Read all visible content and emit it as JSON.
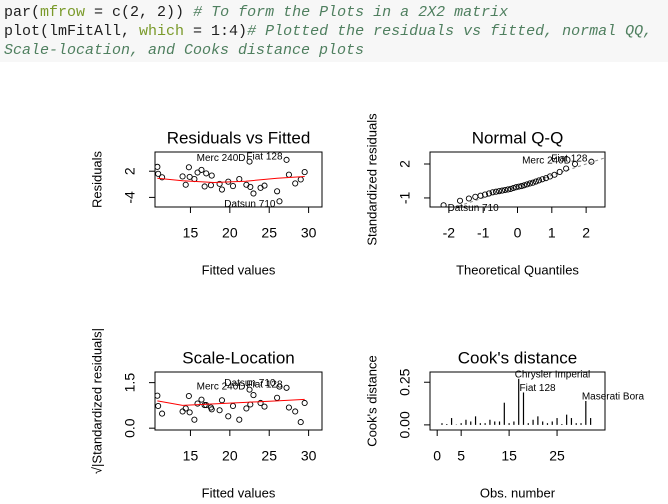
{
  "code": {
    "lines": [
      [
        {
          "text": "par(",
          "color": "#1f1f1f",
          "italic": false
        },
        {
          "text": "mfrow",
          "color": "#7a9a2a",
          "italic": false
        },
        {
          "text": " = c(2, 2))",
          "color": "#1f1f1f",
          "italic": false
        },
        {
          "text": " # To form the Plots in a 2X2 matrix",
          "color": "#4f7f5f",
          "italic": true
        }
      ],
      [
        {
          "text": "plot(lmFitAll, ",
          "color": "#1f1f1f",
          "italic": false
        },
        {
          "text": "which",
          "color": "#7a9a2a",
          "italic": false
        },
        {
          "text": " = 1:4)",
          "color": "#1f1f1f",
          "italic": false
        },
        {
          "text": "# Plotted the residuals vs fitted, normal QQ,",
          "color": "#4f7f5f",
          "italic": true
        }
      ],
      [
        {
          "text": "Scale-location, and Cooks distance plots",
          "color": "#4f7f5f",
          "italic": true
        }
      ]
    ]
  },
  "chart_data": [
    {
      "type": "scatter",
      "title": "Residuals vs Fitted",
      "x_label": "Fitted values",
      "y_label": "Residuals",
      "x": [
        22.6,
        22.1,
        26.3,
        21.2,
        17.7,
        20.4,
        14.4,
        22.5,
        24.4,
        18.7,
        19.0,
        14.9,
        15.9,
        15.5,
        11.4,
        10.9,
        10.8,
        27.2,
        29.0,
        29.5,
        23.9,
        16.8,
        17.6,
        14.0,
        16.4,
        28.3,
        26.0,
        27.5,
        17.0,
        19.8,
        14.8,
        23.0
      ],
      "y": [
        -1.6,
        -1.1,
        -4.9,
        0.2,
        1.0,
        -1.4,
        -1.1,
        4.2,
        -1.3,
        -0.9,
        -2.2,
        0.7,
        1.7,
        0.2,
        0.6,
        1.4,
        3.0,
        4.6,
        0.1,
        1.8,
        -1.8,
        -1.5,
        -1.2,
        0.8,
        2.3,
        -0.8,
        -2.6,
        1.2,
        1.5,
        -0.4,
        2.9,
        -3.1
      ],
      "smooth": {
        "x": [
          10.8,
          14,
          18,
          22,
          26,
          29.5
        ],
        "y": [
          0.4,
          -0.2,
          -0.6,
          -0.3,
          0.4,
          0.8
        ],
        "color": "#ff0000"
      },
      "annotations": [
        {
          "text": "Fiat 128",
          "point": 17
        },
        {
          "text": "Merc 240D",
          "point": 7
        },
        {
          "text": "Datsun 710",
          "point": 2
        }
      ],
      "xlim": [
        10.5,
        31.7
      ],
      "ylim": [
        -6.2,
        6.4
      ],
      "xticks": [
        15,
        20,
        25,
        30
      ],
      "yticks": [
        -4,
        2
      ]
    },
    {
      "type": "qq",
      "title": "Normal Q-Q",
      "x_label": "Theoretical Quantiles",
      "y_label": "Standardized residuals",
      "x": [
        -2.154,
        -1.675,
        -1.417,
        -1.23,
        -1.078,
        -0.947,
        -0.83,
        -0.724,
        -0.626,
        -0.535,
        -0.447,
        -0.361,
        -0.278,
        -0.197,
        -0.118,
        -0.039,
        0.039,
        0.118,
        0.197,
        0.278,
        0.361,
        0.447,
        0.535,
        0.626,
        0.724,
        0.83,
        0.947,
        1.078,
        1.23,
        1.417,
        1.675,
        2.154
      ],
      "y": [
        -1.65,
        -1.25,
        -1.05,
        -0.9,
        -0.8,
        -0.7,
        -0.6,
        -0.5,
        -0.45,
        -0.4,
        -0.35,
        -0.3,
        -0.25,
        -0.2,
        -0.12,
        -0.05,
        0.0,
        0.05,
        0.12,
        0.2,
        0.28,
        0.35,
        0.45,
        0.55,
        0.65,
        0.75,
        0.9,
        1.05,
        1.3,
        1.6,
        2.0,
        2.2
      ],
      "annotations": [
        {
          "text": "Merc 240D",
          "point": 30
        },
        {
          "text": "Fiat 128",
          "point": 31
        },
        {
          "text": "Datsun 710",
          "point": 0
        }
      ],
      "xlim": [
        -2.55,
        2.55
      ],
      "ylim": [
        -1.8,
        3.06
      ],
      "xticks": [
        -2,
        -1,
        0,
        1,
        2
      ],
      "yticks": [
        -1,
        2
      ]
    },
    {
      "type": "scatter",
      "title": "Scale-Location",
      "x_label": "Fitted values",
      "y_label": "√|Standardized residuals|",
      "x": [
        22.6,
        22.1,
        26.3,
        21.2,
        17.7,
        20.4,
        14.4,
        22.5,
        24.4,
        18.7,
        19.0,
        14.9,
        15.9,
        15.5,
        11.4,
        10.9,
        10.8,
        27.2,
        29.0,
        29.5,
        23.9,
        16.8,
        17.6,
        14.0,
        16.4,
        28.3,
        26.0,
        27.5,
        17.0,
        19.8,
        14.8,
        23.0
      ],
      "y": [
        0.78,
        0.65,
        1.37,
        0.28,
        0.62,
        0.73,
        0.65,
        1.27,
        0.71,
        0.59,
        0.92,
        0.52,
        0.81,
        0.28,
        0.48,
        0.73,
        1.07,
        1.33,
        0.2,
        0.83,
        0.83,
        0.76,
        0.68,
        0.55,
        0.94,
        0.55,
        1.0,
        0.68,
        0.76,
        0.39,
        1.06,
        1.09
      ],
      "smooth": {
        "x": [
          10.8,
          14,
          18,
          22,
          26,
          29.5
        ],
        "y": [
          0.9,
          0.75,
          0.8,
          0.85,
          0.9,
          0.95
        ],
        "color": "#ff0000"
      },
      "annotations": [
        {
          "text": "Datsun 710",
          "point": 2
        },
        {
          "text": "Fiat 128",
          "point": 17
        },
        {
          "text": "Merc 240D",
          "point": 7
        }
      ],
      "xlim": [
        10.5,
        31.7
      ],
      "ylim": [
        -0.06,
        1.85
      ],
      "xticks": [
        15,
        20,
        25,
        30
      ],
      "yticks": [
        {
          "value": 0,
          "label": "0.0"
        },
        1.5
      ]
    },
    {
      "type": "bar",
      "title": "Cook's distance",
      "x_label": "Obs. number",
      "y_label": "Cook's distance",
      "x": [
        1,
        2,
        3,
        4,
        5,
        6,
        7,
        8,
        9,
        10,
        11,
        12,
        13,
        14,
        15,
        16,
        17,
        18,
        19,
        20,
        21,
        22,
        23,
        24,
        25,
        26,
        27,
        28,
        29,
        30,
        31,
        32
      ],
      "y": [
        0.01,
        0.005,
        0.04,
        0.002,
        0.01,
        0.03,
        0.02,
        0.05,
        0.01,
        0.01,
        0.03,
        0.02,
        0.02,
        0.13,
        0.01,
        0.02,
        0.27,
        0.19,
        0.01,
        0.03,
        0.05,
        0.02,
        0.01,
        0.02,
        0.04,
        0.005,
        0.06,
        0.04,
        0.01,
        0.01,
        0.14,
        0.04
      ],
      "annotations": [
        {
          "text": "Chrysler Imperial",
          "point": 16
        },
        {
          "text": "Fiat 128",
          "point": 17
        },
        {
          "text": "Maserati Bora",
          "point": 30
        }
      ],
      "xlim": [
        -1.5,
        35
      ],
      "ylim": [
        -0.03,
        0.31
      ],
      "xticks": [
        0,
        5,
        15,
        25
      ],
      "yticks": [
        {
          "value": 0,
          "label": "0.00"
        },
        0.25
      ]
    }
  ]
}
